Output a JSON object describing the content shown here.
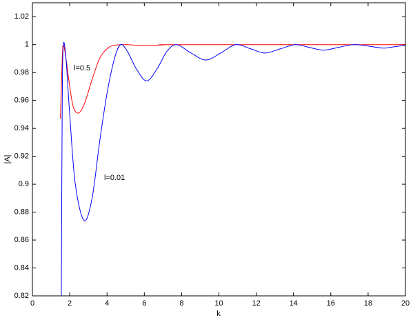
{
  "chart_data": {
    "type": "line",
    "xlabel": "k",
    "ylabel": "|A|",
    "xlim": [
      0,
      20
    ],
    "xticks": [
      0,
      2,
      4,
      6,
      8,
      10,
      12,
      14,
      16,
      18,
      20
    ],
    "ylim": [
      0.82,
      1.03
    ],
    "yticks": [
      0.82,
      0.84,
      0.86,
      0.88,
      0.9,
      0.92,
      0.94,
      0.96,
      0.98,
      1,
      1.02
    ],
    "series": [
      {
        "name": "l=0.5",
        "color": "#ff0000",
        "x": [
          1.5,
          1.6,
          1.66,
          1.8,
          2.0,
          2.2,
          2.48,
          2.8,
          3.2,
          3.6,
          4.0,
          4.36,
          5.0,
          6.0,
          7.0,
          8.0,
          20
        ],
        "values": [
          0.947,
          0.99,
          1.0,
          0.99,
          0.97,
          0.955,
          0.951,
          0.958,
          0.975,
          0.99,
          0.997,
          0.9995,
          1.0,
          0.9993,
          0.9998,
          1.0,
          1.0
        ]
      },
      {
        "name": "l=0.01",
        "color": "#0000ff",
        "x": [
          1.55,
          1.6,
          1.66,
          1.8,
          2.0,
          2.3,
          2.77,
          3.2,
          3.6,
          4.0,
          4.4,
          4.73,
          5.1,
          5.6,
          6.14,
          6.7,
          7.2,
          7.73,
          8.5,
          9.3,
          10.1,
          10.9,
          11.7,
          12.46,
          13.3,
          14.1,
          14.85,
          15.6,
          16.4,
          17.2,
          18.0,
          18.8,
          19.4,
          20
        ],
        "values": [
          0.82,
          0.96,
          1.0,
          0.99,
          0.95,
          0.9,
          0.874,
          0.89,
          0.93,
          0.965,
          0.99,
          1.0,
          0.995,
          0.982,
          0.974,
          0.983,
          0.995,
          1.0,
          0.994,
          0.989,
          0.994,
          1.0,
          0.997,
          0.994,
          0.997,
          1.0,
          0.998,
          0.996,
          0.998,
          1.0,
          0.999,
          0.9975,
          0.9985,
          0.9995
        ]
      }
    ]
  }
}
